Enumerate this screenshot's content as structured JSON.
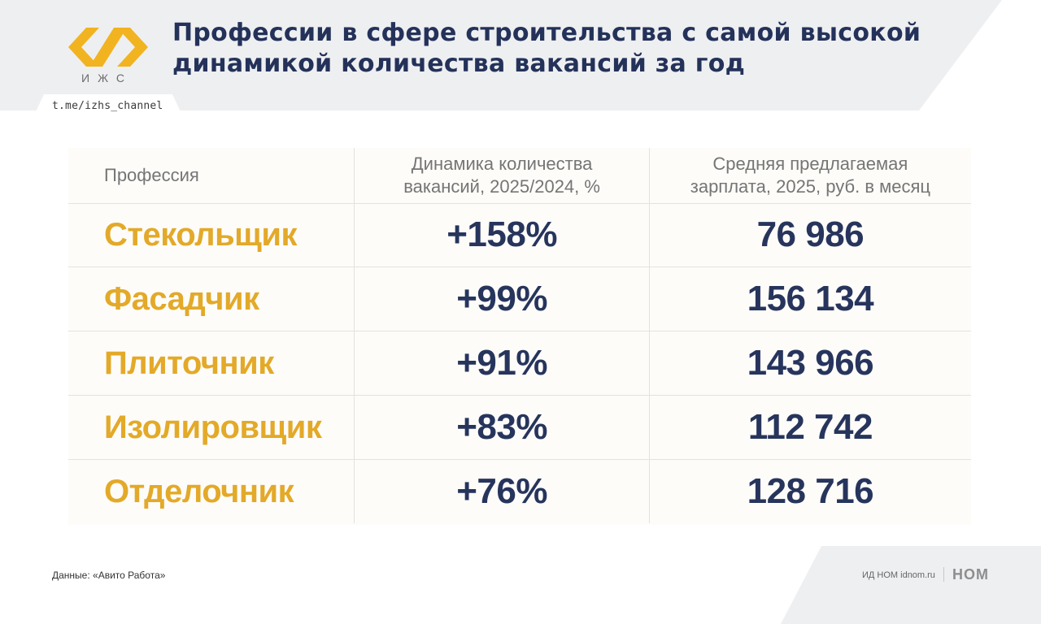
{
  "header": {
    "title_line1": "Профессии в сфере строительства с самой высокой",
    "title_line2": "динамикой количества вакансий за год",
    "logo_text": "ИЖС",
    "channel": "t.me/izhs_channel"
  },
  "table": {
    "headers": {
      "profession": "Профессия",
      "dynamics_line1": "Динамика количества",
      "dynamics_line2": "вакансий, 2025/2024, %",
      "salary_line1": "Средняя предлагаемая",
      "salary_line2": "зарплата, 2025, руб. в месяц"
    },
    "rows": [
      {
        "profession": "Стекольщик",
        "dynamics": "+158%",
        "salary": "76 986"
      },
      {
        "profession": "Фасадчик",
        "dynamics": "+99%",
        "salary": "156 134"
      },
      {
        "profession": "Плиточник",
        "dynamics": "+91%",
        "salary": "143 966"
      },
      {
        "profession": "Изолировщик",
        "dynamics": "+83%",
        "salary": "112 742"
      },
      {
        "profession": "Отделочник",
        "dynamics": "+76%",
        "salary": "128 716"
      }
    ]
  },
  "footer": {
    "source": "Данные: «Авито Работа»",
    "publisher": "ИД НОМ idnom.ru",
    "publisher_logo": "НОМ"
  },
  "colors": {
    "title": "#24325a",
    "profession": "#e3a928",
    "value": "#27355d",
    "logo": "#f2b320"
  }
}
